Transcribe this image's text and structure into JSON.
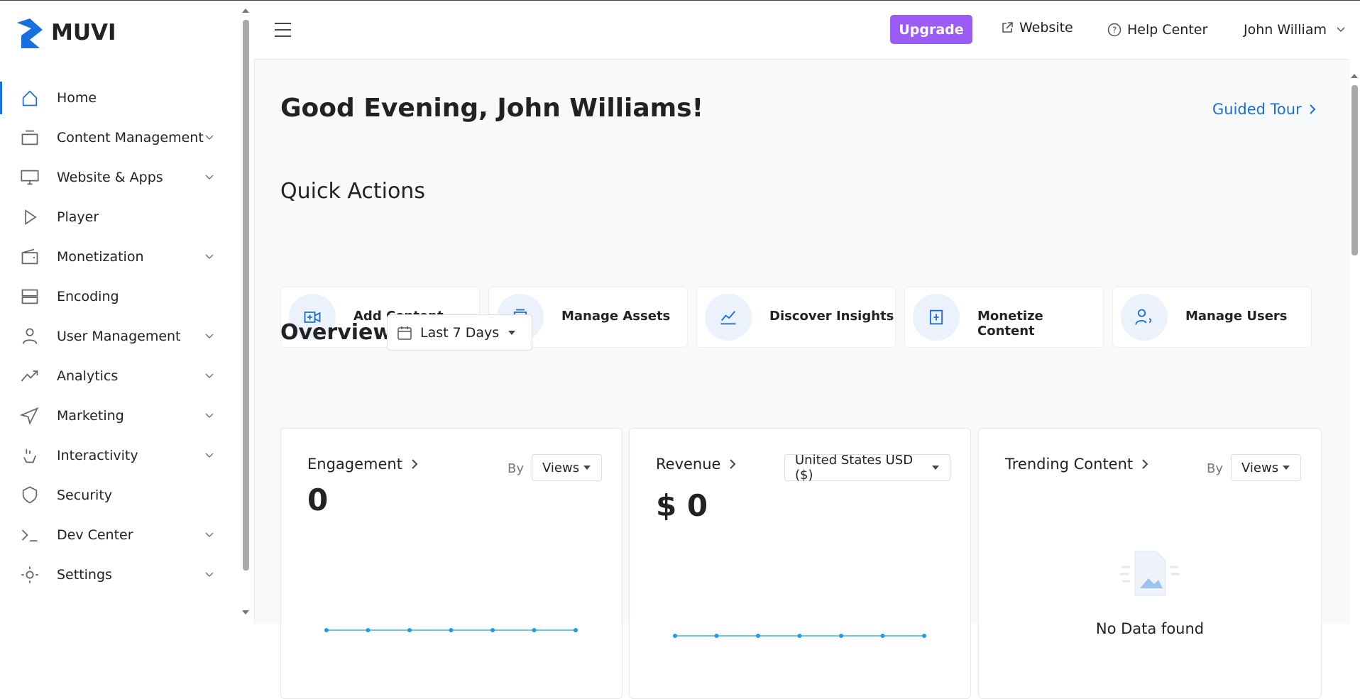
{
  "sidebar": {
    "logo": "MUVI",
    "items": [
      {
        "label": "Home",
        "expandable": false,
        "active": true
      },
      {
        "label": "Content Management",
        "expandable": true
      },
      {
        "label": "Website & Apps",
        "expandable": true
      },
      {
        "label": "Player",
        "expandable": false
      },
      {
        "label": "Monetization",
        "expandable": true
      },
      {
        "label": "Encoding",
        "expandable": false
      },
      {
        "label": "User Management",
        "expandable": true
      },
      {
        "label": "Analytics",
        "expandable": true
      },
      {
        "label": "Marketing",
        "expandable": true
      },
      {
        "label": "Interactivity",
        "expandable": true
      },
      {
        "label": "Security",
        "expandable": false
      },
      {
        "label": "Dev Center",
        "expandable": true
      },
      {
        "label": "Settings",
        "expandable": true
      }
    ]
  },
  "topbar": {
    "upgrade": "Upgrade",
    "website": "Website",
    "help": "Help Center",
    "user": "John William"
  },
  "greeting": "Good Evening, John Williams!",
  "guided_tour": "Guided Tour",
  "quick_actions": {
    "title": "Quick Actions",
    "items": [
      "Add Content",
      "Manage Assets",
      "Discover Insights",
      "Monetize Content",
      "Manage Users"
    ]
  },
  "overview": {
    "title": "Overview",
    "range": "Last 7 Days"
  },
  "cards": [
    {
      "title": "Engagement",
      "by": "By",
      "select": "Views",
      "value": "0",
      "trend": [
        0,
        0,
        0,
        0,
        0,
        0,
        0
      ]
    },
    {
      "title": "Revenue",
      "select": "United States USD ($)",
      "value": "$ 0",
      "trend": [
        0,
        0,
        0,
        0,
        0,
        0,
        0
      ]
    },
    {
      "title": "Trending Content",
      "by": "By",
      "select": "Views",
      "empty": "No Data found"
    }
  ]
}
